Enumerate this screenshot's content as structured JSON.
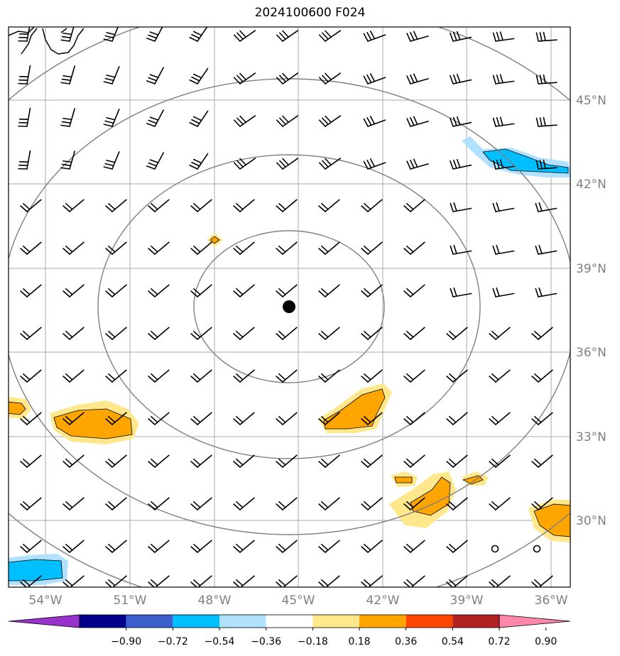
{
  "title": "2024100600 F024",
  "map": {
    "lon_labels": [
      "54°W",
      "51°W",
      "48°W",
      "45°W",
      "42°W",
      "39°W",
      "36°W"
    ],
    "lat_labels": [
      "45°N",
      "42°N",
      "39°N",
      "36°N",
      "33°N",
      "30°N"
    ],
    "center_marker": "storm-center",
    "range_rings": 5,
    "colors": {
      "grid": "#aaaaaa",
      "ring": "#808080",
      "barb": "#000000"
    }
  },
  "colorbar": {
    "ticks": [
      "−0.90",
      "−0.72",
      "−0.54",
      "−0.36",
      "−0.18",
      "0.18",
      "0.36",
      "0.54",
      "0.72",
      "0.90"
    ],
    "colors": [
      "#9932cc",
      "#00008b",
      "#3a5fcd",
      "#00bfff",
      "#b0e2ff",
      "#ffffff",
      "#ffe88c",
      "#ffa500",
      "#ff4500",
      "#b22222",
      "#ff88aa"
    ]
  },
  "chart_data": {
    "type": "heatmap",
    "title": "2024100600 F024",
    "xlabel": "",
    "ylabel": "",
    "x_ticks": [
      "54°W",
      "51°W",
      "48°W",
      "45°W",
      "42°W",
      "39°W",
      "36°W"
    ],
    "y_ticks": [
      "45°N",
      "42°N",
      "39°N",
      "36°N",
      "33°N",
      "30°N"
    ],
    "xlim": [
      -56,
      -35
    ],
    "ylim": [
      28,
      48
    ],
    "legend": "colorbar-bottom",
    "colorbar_levels": [
      -0.9,
      -0.72,
      -0.54,
      -0.36,
      -0.18,
      0.18,
      0.36,
      0.54,
      0.72,
      0.9
    ],
    "wind_barbs": "grid-every-1.5-deg",
    "center": {
      "lon": -45.3,
      "lat": 38.2
    }
  }
}
